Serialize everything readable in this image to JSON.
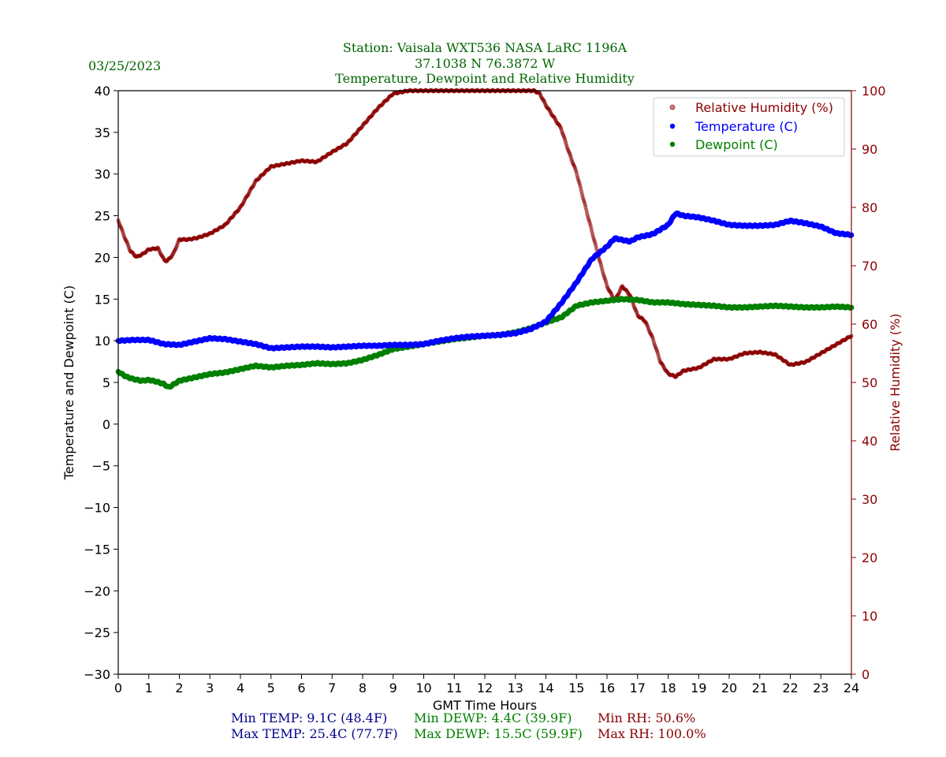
{
  "header": {
    "date": "03/25/2023",
    "title_line1": "Station:  Vaisala WXT536  NASA LaRC 1196A",
    "title_line2": "37.1038 N 76.3872 W",
    "title_line3": "Temperature, Dewpoint and Relative Humidity"
  },
  "colors": {
    "temperature": "#0000ff",
    "dewpoint": "#008000",
    "humidity": "#8b0000",
    "title": "#006400",
    "stats_temp": "#00008b",
    "stats_dewp": "#008000",
    "stats_rh": "#8b0000"
  },
  "stats": {
    "min_temp": "Min TEMP: 9.1C (48.4F)",
    "max_temp": "Max TEMP: 25.4C (77.7F)",
    "min_dewp": "Min DEWP: 4.4C (39.9F)",
    "max_dewp": "Max DEWP: 15.5C (59.9F)",
    "min_rh": "Min RH: 50.6%",
    "max_rh": "Max RH: 100.0%"
  },
  "chart_data": {
    "type": "scatter",
    "xlabel": "GMT Time Hours",
    "ylabel": "Temperature and Dewpoint (C)",
    "y2label": "Relative Humidity (%)",
    "xlim": [
      0,
      24
    ],
    "ylim": [
      -30,
      40
    ],
    "y2lim": [
      0,
      100
    ],
    "xticks": [
      "0",
      "1",
      "2",
      "3",
      "4",
      "5",
      "6",
      "7",
      "8",
      "9",
      "10",
      "11",
      "12",
      "13",
      "14",
      "15",
      "16",
      "17",
      "18",
      "19",
      "20",
      "21",
      "22",
      "23",
      "24"
    ],
    "yticks": [
      "40",
      "35",
      "30",
      "25",
      "20",
      "15",
      "10",
      "5",
      "0",
      "−5",
      "−10",
      "−15",
      "−20",
      "−25",
      "−30"
    ],
    "y2ticks": [
      "100",
      "90",
      "80",
      "70",
      "60",
      "50",
      "40",
      "30",
      "20",
      "10",
      "0"
    ],
    "legend": {
      "placement": "top-right",
      "entries": [
        "Relative Humidity (%)",
        "Temperature (C)",
        "Dewpoint (C)"
      ]
    },
    "series": [
      {
        "name": "Temperature (C)",
        "axis": "left",
        "x": [
          0,
          0.5,
          1,
          1.5,
          2,
          2.5,
          3,
          3.5,
          4,
          4.5,
          5,
          5.5,
          6,
          6.5,
          7,
          7.5,
          8,
          8.5,
          9,
          9.5,
          10,
          10.5,
          11,
          11.5,
          12,
          12.5,
          13,
          13.5,
          14,
          14.5,
          15,
          15.5,
          16,
          16.25,
          16.5,
          16.75,
          17,
          17.5,
          18,
          18.25,
          18.5,
          19,
          19.5,
          20,
          20.5,
          21,
          21.5,
          22,
          22.5,
          23,
          23.5,
          24
        ],
        "y": [
          10,
          10.1,
          10.1,
          9.6,
          9.5,
          9.9,
          10.3,
          10.2,
          9.9,
          9.6,
          9.1,
          9.2,
          9.3,
          9.3,
          9.2,
          9.3,
          9.4,
          9.4,
          9.5,
          9.5,
          9.6,
          10.0,
          10.3,
          10.5,
          10.6,
          10.7,
          10.9,
          11.4,
          12.3,
          14.5,
          17.0,
          19.8,
          21.3,
          22.3,
          22.1,
          21.9,
          22.4,
          22.8,
          23.9,
          25.3,
          25.0,
          24.8,
          24.4,
          23.9,
          23.8,
          23.8,
          23.9,
          24.4,
          24.1,
          23.7,
          22.9,
          22.7
        ]
      },
      {
        "name": "Dewpoint (C)",
        "axis": "left",
        "x": [
          0,
          0.25,
          0.5,
          0.75,
          1,
          1.25,
          1.5,
          1.65,
          2,
          2.5,
          3,
          3.5,
          4,
          4.5,
          5,
          5.5,
          6,
          6.5,
          7,
          7.5,
          8,
          8.5,
          9,
          9.5,
          10,
          10.5,
          11,
          11.5,
          12,
          12.5,
          13,
          13.5,
          14,
          14.5,
          15,
          15.5,
          16,
          16.5,
          17,
          17.5,
          18,
          18.5,
          19,
          19.5,
          20,
          20.5,
          21,
          21.5,
          22,
          22.5,
          23,
          23.5,
          24
        ],
        "y": [
          6.3,
          5.7,
          5.4,
          5.2,
          5.3,
          5.1,
          4.8,
          4.4,
          5.2,
          5.6,
          6.0,
          6.2,
          6.6,
          7.0,
          6.8,
          7.0,
          7.1,
          7.3,
          7.2,
          7.3,
          7.7,
          8.3,
          9.0,
          9.3,
          9.6,
          9.9,
          10.2,
          10.4,
          10.6,
          10.7,
          11.0,
          11.5,
          12.2,
          12.8,
          14.2,
          14.6,
          14.8,
          15.0,
          14.9,
          14.6,
          14.6,
          14.4,
          14.3,
          14.2,
          14.0,
          14.0,
          14.1,
          14.2,
          14.1,
          14.0,
          14.0,
          14.1,
          14.0
        ]
      },
      {
        "name": "Relative Humidity (%)",
        "axis": "right",
        "x": [
          0,
          0.2,
          0.4,
          0.6,
          0.8,
          1,
          1.3,
          1.5,
          1.6,
          1.8,
          2,
          2.3,
          2.6,
          3,
          3.5,
          4,
          4.5,
          5,
          5.5,
          6,
          6.5,
          7,
          7.5,
          8,
          8.5,
          9,
          9.5,
          10,
          10.5,
          11,
          11.5,
          12,
          12.5,
          13,
          13.5,
          13.8,
          14,
          14.5,
          14.75,
          15,
          15.25,
          15.5,
          15.75,
          16,
          16.25,
          16.5,
          16.75,
          17,
          17.25,
          17.5,
          17.75,
          18,
          18.25,
          18.5,
          19,
          19.5,
          20,
          20.5,
          21,
          21.5,
          22,
          22.5,
          23,
          23.5,
          24
        ],
        "y": [
          77.8,
          75,
          72.5,
          71.5,
          72,
          72.8,
          73,
          71,
          70.8,
          72,
          74.5,
          74.5,
          74.8,
          75.5,
          77,
          80,
          84.5,
          87,
          87.5,
          88,
          87.8,
          89.5,
          91,
          94,
          97,
          99.5,
          100,
          100.5,
          100.5,
          100.5,
          100.5,
          100.5,
          100.5,
          100.5,
          100.3,
          99.5,
          97.5,
          93.5,
          89.5,
          86,
          81,
          76,
          71,
          66.5,
          64,
          66.5,
          65,
          61.5,
          60.5,
          57.5,
          53.5,
          51.5,
          51,
          52,
          52.5,
          54,
          54,
          55,
          55.2,
          54.8,
          53,
          53.5,
          55,
          56.5,
          58
        ]
      }
    ]
  }
}
